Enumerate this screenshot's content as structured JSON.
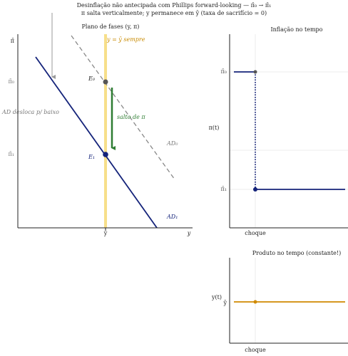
{
  "title": {
    "line1": "Desinflação não antecipada com Phillips forward-looking — π̄₀ → π̄₁",
    "line2": "π salta verticalmente; y permanece em ȳ (taxa de sacrifício = 0)"
  },
  "phase": {
    "title": "Plano de fases (y, π)",
    "y_labels": [
      "π̄",
      "π̄₀",
      "π̄₁"
    ],
    "x_labels": [
      "ȳ",
      "y"
    ],
    "note": "AD desloca p/ baixo",
    "vline_label": "y = ȳ sempre",
    "points": [
      "E₀",
      "E₁"
    ],
    "arrow_label": "salto de π",
    "curves": [
      "AD₀",
      "AD₁"
    ]
  },
  "inflation": {
    "title": "Inflação no tempo",
    "y_axis": "π(t)",
    "y_labels": [
      "π̄₀",
      "π̄₁"
    ],
    "x_label": "choque"
  },
  "output": {
    "title": "Produto no tempo (constante!)",
    "y_axis": "y(t)",
    "y_label": "ȳ",
    "x_label": "choque"
  }
}
